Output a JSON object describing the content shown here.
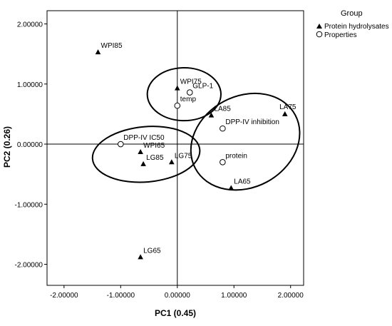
{
  "chart_data": {
    "type": "scatter",
    "xlabel": "PC1 (0.45)",
    "ylabel": "PC2 (0.26)",
    "xlim": [
      -2.3,
      2.23
    ],
    "ylim": [
      -2.35,
      2.22
    ],
    "x_ticks": [
      {
        "value": -2.0,
        "label": "-2.00000"
      },
      {
        "value": -1.0,
        "label": "-1.00000"
      },
      {
        "value": 0.0,
        "label": "0.00000"
      },
      {
        "value": 1.0,
        "label": "1.00000"
      },
      {
        "value": 2.0,
        "label": "2.00000"
      }
    ],
    "y_ticks": [
      {
        "value": 2.0,
        "label": "2.00000"
      },
      {
        "value": 1.0,
        "label": "1.00000"
      },
      {
        "value": 0.0,
        "label": "0.00000"
      },
      {
        "value": -1.0,
        "label": "-1.00000"
      },
      {
        "value": -2.0,
        "label": "-2.00000"
      }
    ],
    "reference_lines": {
      "x": 0,
      "y": 0
    },
    "legend": {
      "title": "Group",
      "position": "top-right",
      "items": [
        {
          "label": "Protein hydrolysates",
          "marker": "triangle"
        },
        {
          "label": "Properties",
          "marker": "circle"
        }
      ]
    },
    "series": [
      {
        "name": "Protein hydrolysates",
        "marker": "triangle",
        "points": [
          {
            "label": "WPI85",
            "x": -1.4,
            "y": 1.53
          },
          {
            "label": "WPI75",
            "x": 0.0,
            "y": 0.93
          },
          {
            "label": "LA85",
            "x": 0.6,
            "y": 0.48
          },
          {
            "label": "LA75",
            "x": 1.9,
            "y": 0.5
          },
          {
            "label": "WPI65",
            "x": -0.65,
            "y": -0.13
          },
          {
            "label": "LG85",
            "x": -0.6,
            "y": -0.33
          },
          {
            "label": "LG75",
            "x": -0.1,
            "y": -0.3
          },
          {
            "label": "LA65",
            "x": 0.95,
            "y": -0.73
          },
          {
            "label": "LG65",
            "x": -0.65,
            "y": -1.88
          }
        ]
      },
      {
        "name": "Properties",
        "marker": "circle",
        "points": [
          {
            "label": "GLP-1",
            "x": 0.22,
            "y": 0.86
          },
          {
            "label": "temp",
            "x": 0.0,
            "y": 0.64
          },
          {
            "label": "DPP-IV inhibition",
            "x": 0.8,
            "y": 0.26
          },
          {
            "label": "DPP-IV IC50",
            "x": -1.0,
            "y": 0.0
          },
          {
            "label": "protein",
            "x": 0.8,
            "y": -0.3
          }
        ]
      }
    ],
    "clusters": [
      {
        "cx": 0.12,
        "cy": 0.83,
        "rx": 0.65,
        "ry": 0.44,
        "rotate_deg": 0
      },
      {
        "cx": -0.55,
        "cy": -0.17,
        "rx": 0.95,
        "ry": 0.46,
        "rotate_deg": -5
      },
      {
        "cx": 1.2,
        "cy": 0.04,
        "rx": 1.0,
        "ry": 0.76,
        "rotate_deg": -28
      }
    ]
  }
}
